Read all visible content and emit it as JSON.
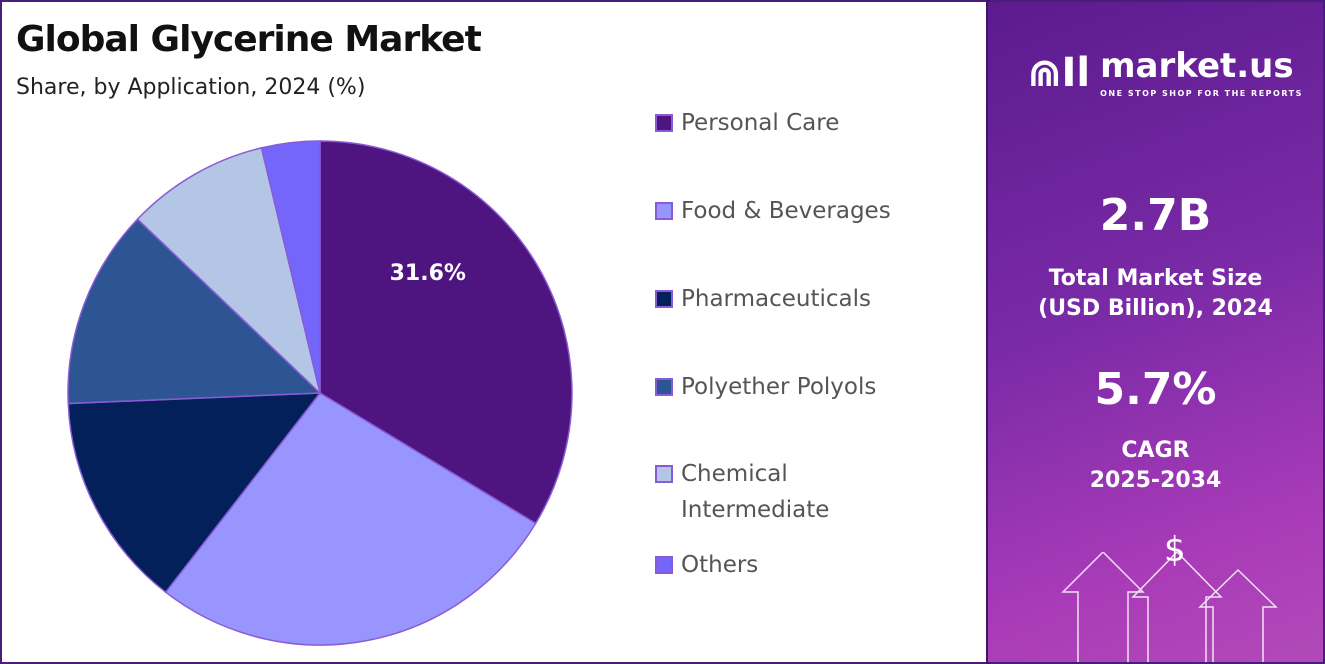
{
  "header": {
    "title": "Global Glycerine Market",
    "subtitle": "Share, by Application, 2024 (%)"
  },
  "chart_data": {
    "type": "pie",
    "title": "Global Glycerine Market",
    "subtitle": "Share, by Application, 2024 (%)",
    "start_angle": "12 o'clock, clockwise",
    "legend_position": "right",
    "categories": [
      "Personal Care",
      "Food & Beverages",
      "Pharmaceuticals",
      "Polyether Polyols",
      "Chemical Intermediate",
      "Others"
    ],
    "values": [
      31.6,
      25.2,
      13.0,
      12.0,
      8.6,
      3.5
    ],
    "colors": [
      "#4e1580",
      "#9896fe",
      "#03205a",
      "#2e5593",
      "#b4c6e6",
      "#7466fa"
    ],
    "data_labels": [
      {
        "category": "Personal Care",
        "text": "31.6%"
      }
    ]
  },
  "legend": {
    "items": [
      {
        "line1": "Personal Care",
        "line2": ""
      },
      {
        "line1": "Food & Beverages",
        "line2": ""
      },
      {
        "line1": "Pharmaceuticals",
        "line2": ""
      },
      {
        "line1": "Polyether Polyols",
        "line2": ""
      },
      {
        "line1": "Chemical",
        "line2": "Intermediate"
      },
      {
        "line1": "Others",
        "line2": ""
      }
    ]
  },
  "panel": {
    "logo_name": "market.us",
    "logo_tagline": "ONE STOP SHOP FOR THE REPORTS",
    "market_size": "2.7B",
    "market_size_label_1": "Total Market Size",
    "market_size_label_2": "(USD Billion), 2024",
    "cagr": "5.7%",
    "cagr_label_1": "CAGR",
    "cagr_label_2": "2025-2034",
    "dollar_symbol": "$"
  }
}
